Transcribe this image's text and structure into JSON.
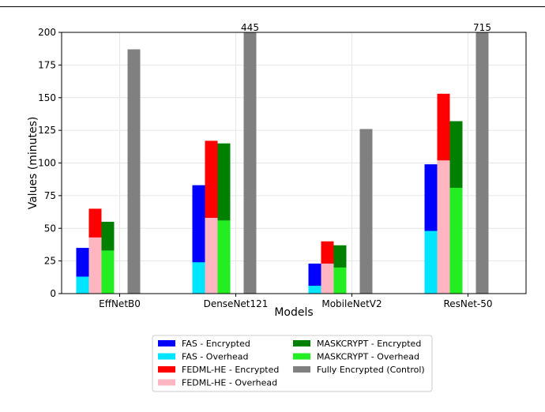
{
  "chart_data": {
    "type": "bar",
    "stacked_overlay": true,
    "xlabel": "Models",
    "ylabel": "Values (minutes)",
    "ylim": [
      0,
      200
    ],
    "yticks": [
      0,
      25,
      50,
      75,
      100,
      125,
      150,
      175,
      200
    ],
    "grid": true,
    "legend_position": "bottom-center",
    "categories": [
      "EffNetB0",
      "DenseNet121",
      "MobileNetV2",
      "ResNet-50"
    ],
    "groups": [
      {
        "name": "FAS",
        "encrypted": [
          35,
          83,
          23,
          99
        ],
        "overhead": [
          13,
          24,
          6,
          48
        ],
        "encrypted_label": "FAS - Encrypted",
        "overhead_label": "FAS - Overhead",
        "encrypted_color": "#0000ff",
        "overhead_color": "#00e5ff"
      },
      {
        "name": "FEDML-HE",
        "encrypted": [
          65,
          117,
          40,
          153
        ],
        "overhead": [
          43,
          58,
          23,
          102
        ],
        "encrypted_label": "FEDML-HE - Encrypted",
        "overhead_label": "FEDML-HE - Overhead",
        "encrypted_color": "#ff0000",
        "overhead_color": "#ffb6c1"
      },
      {
        "name": "MASKCRYPT",
        "encrypted": [
          55,
          115,
          37,
          132
        ],
        "overhead": [
          33,
          56,
          20,
          81
        ],
        "encrypted_label": "MASKCRYPT - Encrypted",
        "overhead_label": "MASKCRYPT - Overhead",
        "encrypted_color": "#008000",
        "overhead_color": "#22ee22"
      }
    ],
    "control": {
      "label": "Fully Encrypted (Control)",
      "values": [
        187,
        445,
        126,
        715
      ],
      "color": "#808080"
    },
    "annotations": [
      {
        "category": "DenseNet121",
        "text": "445"
      },
      {
        "category": "ResNet-50",
        "text": "715"
      }
    ]
  }
}
